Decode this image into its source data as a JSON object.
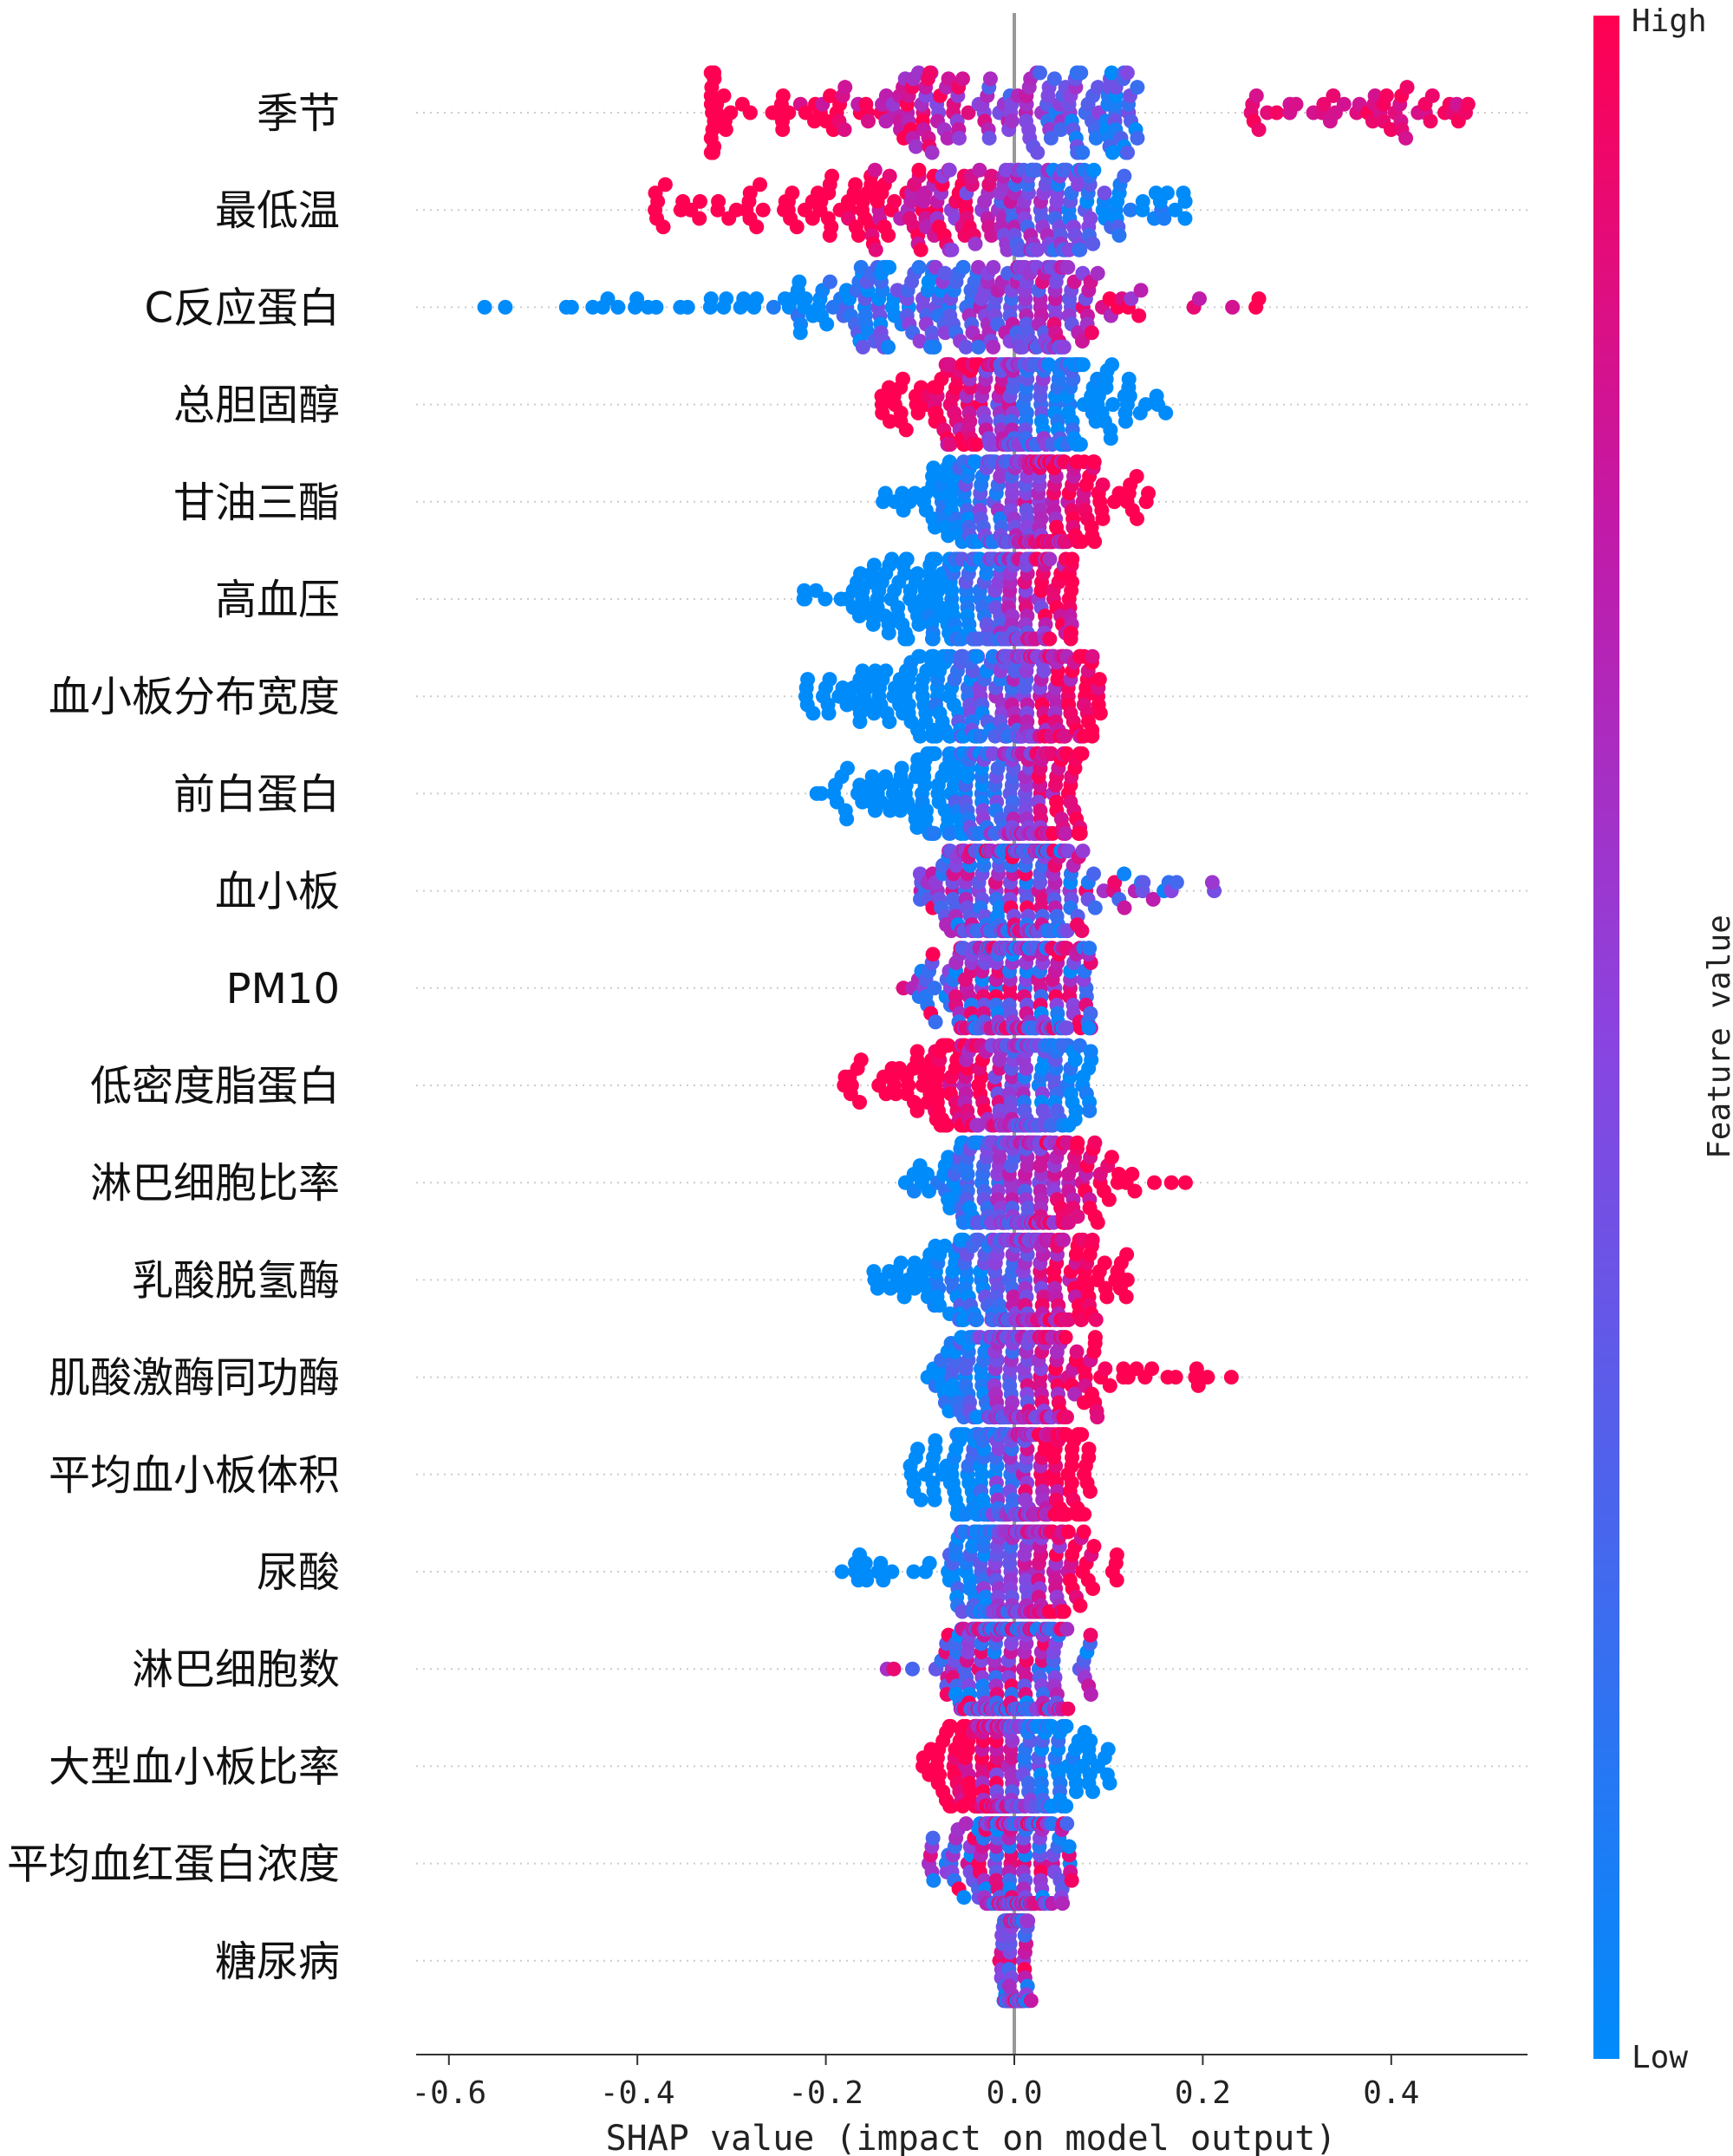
{
  "chart_data": {
    "type": "scatter",
    "subtype": "shap-beeswarm",
    "xlabel": "SHAP value (impact on model output)",
    "xlim": [
      -0.635,
      0.55
    ],
    "xticks": [
      -0.6,
      -0.4,
      -0.2,
      0.0,
      0.2,
      0.4
    ],
    "xtick_labels": [
      "-0.6",
      "-0.4",
      "-0.2",
      "0.0",
      "0.2",
      "0.4"
    ],
    "grid": false,
    "colorbar": {
      "label": "Feature value",
      "high_label": "High",
      "low_label": "Low",
      "high_color": "#ff0052",
      "low_color": "#008bfb"
    },
    "features": [
      {
        "name": "季节",
        "range": [
          -0.32,
          0.49
        ],
        "gaps": [
          [
            0.13,
            0.25
          ]
        ],
        "skew": -0.6,
        "spread": 0.1,
        "high_side": "neg",
        "cluster_hi": [
          0.25,
          0.49
        ]
      },
      {
        "name": "最低温",
        "range": [
          -0.38,
          0.18
        ],
        "skew": -0.5,
        "spread": 0.09,
        "high_side": "neg"
      },
      {
        "name": "C反应蛋白",
        "range": [
          -0.58,
          0.28
        ],
        "skew": -0.7,
        "spread": 0.06,
        "high_side": "pos",
        "sparse_left": true
      },
      {
        "name": "总胆固醇",
        "range": [
          -0.14,
          0.16
        ],
        "skew": 0.0,
        "spread": 0.06,
        "high_side": "neg"
      },
      {
        "name": "甘油三酯",
        "range": [
          -0.14,
          0.15
        ],
        "skew": 0.0,
        "spread": 0.05,
        "high_side": "pos"
      },
      {
        "name": "高血压",
        "range": [
          -0.23,
          0.06
        ],
        "skew": -0.5,
        "spread": 0.04,
        "high_side": "pos",
        "binary": true
      },
      {
        "name": "血小板分布宽度",
        "range": [
          -0.22,
          0.09
        ],
        "skew": -0.4,
        "spread": 0.05,
        "high_side": "pos"
      },
      {
        "name": "前白蛋白",
        "range": [
          -0.21,
          0.07
        ],
        "skew": -0.3,
        "spread": 0.045,
        "high_side": "pos"
      },
      {
        "name": "血小板",
        "range": [
          -0.1,
          0.22
        ],
        "skew": 0.1,
        "spread": 0.045,
        "high_side": "mix"
      },
      {
        "name": "PM10",
        "range": [
          -0.12,
          0.08
        ],
        "skew": 0.0,
        "spread": 0.04,
        "high_side": "mix"
      },
      {
        "name": "低密度脂蛋白",
        "range": [
          -0.18,
          0.08
        ],
        "skew": -0.3,
        "spread": 0.04,
        "high_side": "neg"
      },
      {
        "name": "淋巴细胞比率",
        "range": [
          -0.14,
          0.19
        ],
        "skew": 0.0,
        "spread": 0.045,
        "high_side": "pos"
      },
      {
        "name": "乳酸脱氢酶",
        "range": [
          -0.15,
          0.13
        ],
        "skew": 0.0,
        "spread": 0.045,
        "high_side": "pos"
      },
      {
        "name": "肌酸激酶同功酶",
        "range": [
          -0.1,
          0.24
        ],
        "skew": 0.1,
        "spread": 0.04,
        "high_side": "pos"
      },
      {
        "name": "平均血小板体积",
        "range": [
          -0.11,
          0.08
        ],
        "skew": 0.0,
        "spread": 0.04,
        "high_side": "pos"
      },
      {
        "name": "尿酸",
        "range": [
          -0.19,
          0.11
        ],
        "skew": 0.0,
        "spread": 0.035,
        "high_side": "pos"
      },
      {
        "name": "淋巴细胞数",
        "range": [
          -0.14,
          0.08
        ],
        "skew": 0.0,
        "spread": 0.035,
        "high_side": "mix"
      },
      {
        "name": "大型血小板比率",
        "range": [
          -0.1,
          0.1
        ],
        "skew": 0.0,
        "spread": 0.035,
        "high_side": "neg"
      },
      {
        "name": "平均血红蛋白浓度",
        "range": [
          -0.09,
          0.06
        ],
        "skew": 0.0,
        "spread": 0.025,
        "high_side": "mix"
      },
      {
        "name": "糖尿病",
        "range": [
          -0.02,
          0.02
        ],
        "skew": 0.0,
        "spread": 0.006,
        "high_side": "mix",
        "binary": true
      }
    ]
  }
}
